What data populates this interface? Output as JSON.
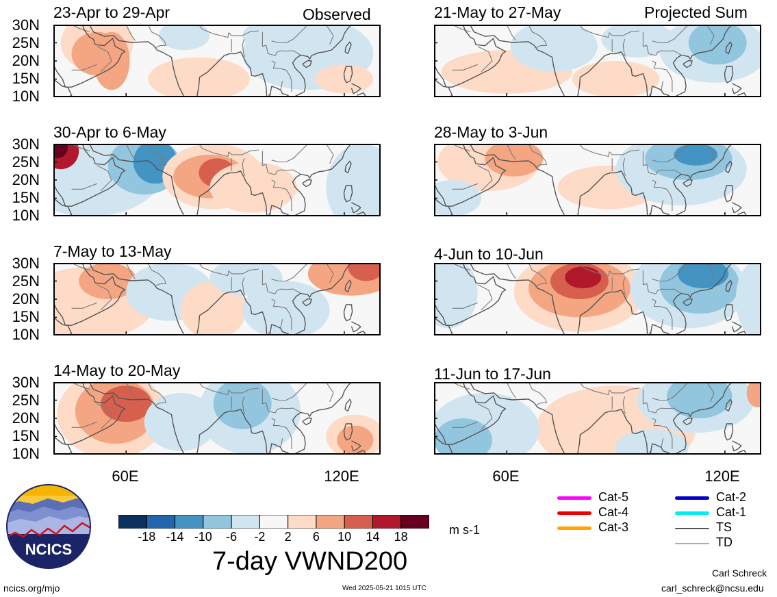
{
  "header": {
    "left_heading": "Observed",
    "right_heading": "Projected Sum"
  },
  "panels": {
    "observed": [
      {
        "period": "23-Apr to 29-Apr"
      },
      {
        "period": "30-Apr to 6-May"
      },
      {
        "period": "7-May to 13-May"
      },
      {
        "period": "14-May to 20-May"
      }
    ],
    "projected": [
      {
        "period": "21-May to 27-May"
      },
      {
        "period": "28-May to 3-Jun"
      },
      {
        "period": "4-Jun to 10-Jun"
      },
      {
        "period": "11-Jun to 17-Jun"
      }
    ]
  },
  "axes": {
    "lat_labels": [
      "30N",
      "25N",
      "20N",
      "15N",
      "10N"
    ],
    "lon_labels": [
      "60E",
      "120E"
    ]
  },
  "colorbar": {
    "tick_labels": [
      "-18",
      "-14",
      "-10",
      "-6",
      "-2",
      "2",
      "6",
      "10",
      "14",
      "18"
    ],
    "units": "m s-1",
    "colors": [
      "#0b3060",
      "#2166ac",
      "#4393c3",
      "#92c5de",
      "#d1e5f0",
      "#f7f7f7",
      "#fddbc7",
      "#f4a582",
      "#d6604d",
      "#b2182b",
      "#67001f"
    ]
  },
  "title": "7-day VWND200",
  "logo_text": "NCICS",
  "footer": {
    "url": "ncics.org/mjo",
    "timestamp": "Wed 2025-05-21 1015 UTC",
    "author": "Carl Schreck",
    "email": "carl_schreck@ncsu.edu"
  },
  "storm_legend": [
    {
      "label": "Cat-5",
      "color": "#ff00ff"
    },
    {
      "label": "Cat-4",
      "color": "#ee0000"
    },
    {
      "label": "Cat-3",
      "color": "#ffa500"
    },
    {
      "label": "Cat-2",
      "color": "#0000cc"
    },
    {
      "label": "Cat-1",
      "color": "#00eeee"
    },
    {
      "label": "TS",
      "color": "#555555"
    },
    {
      "label": "TD",
      "color": "#aaaaaa"
    }
  ]
}
